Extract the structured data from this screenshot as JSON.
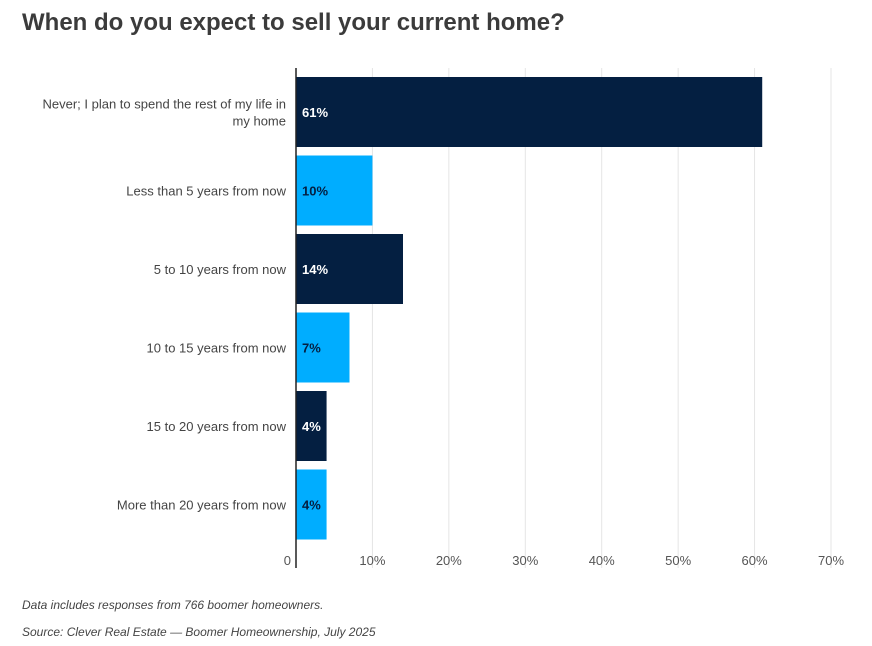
{
  "chart_data": {
    "type": "bar",
    "orientation": "horizontal",
    "title": "When do you expect to sell your current home?",
    "categories": [
      "Never; I plan to spend the rest of my life in my home",
      "Less than 5 years from now",
      "5 to 10 years from now",
      "10 to 15 years from now",
      "15 to 20 years from now",
      "More than 20 years from now"
    ],
    "category_lines": [
      [
        "Never; I plan to spend the rest of my life in",
        "my home"
      ],
      [
        "Less than 5 years from now"
      ],
      [
        "5 to 10 years from now"
      ],
      [
        "10 to 15 years from now"
      ],
      [
        "15 to 20 years from now"
      ],
      [
        "More than 20 years from now"
      ]
    ],
    "values": [
      61,
      10,
      14,
      7,
      4,
      4
    ],
    "value_labels": [
      "61%",
      "10%",
      "14%",
      "7%",
      "4%",
      "4%"
    ],
    "bar_colors": [
      "#041f41",
      "#00adff",
      "#041f41",
      "#00adff",
      "#041f41",
      "#00adff"
    ],
    "label_colors": [
      "#ffffff",
      "#041f41",
      "#ffffff",
      "#041f41",
      "#ffffff",
      "#041f41"
    ],
    "xlim": [
      0,
      70
    ],
    "ticks": [
      0,
      10,
      20,
      30,
      40,
      50,
      60,
      70
    ],
    "tick_labels": [
      "0",
      "10%",
      "20%",
      "30%",
      "40%",
      "50%",
      "60%",
      "70%"
    ],
    "grid": true,
    "legend": "none"
  },
  "notes": {
    "responses": "Data includes responses from 766 boomer homeowners.",
    "source": "Source: Clever Real Estate — Boomer Homeownership, July 2025"
  }
}
